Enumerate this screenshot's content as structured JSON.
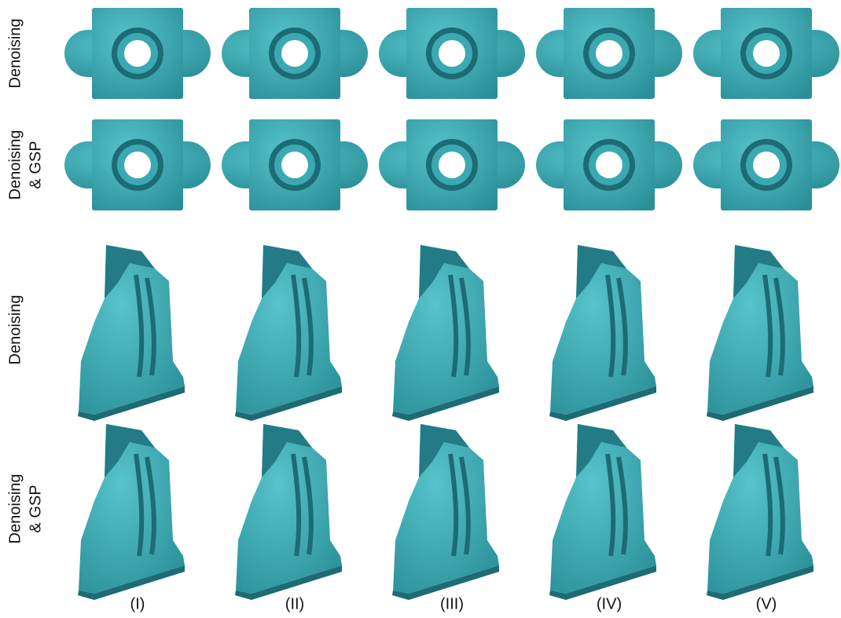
{
  "row_labels": [
    [
      "Denoising"
    ],
    [
      "Denoising",
      "& GSP"
    ],
    [
      "Denoising"
    ],
    [
      "Denoising",
      "& GSP"
    ]
  ],
  "column_labels": [
    "(I)",
    "(II)",
    "(III)",
    "(IV)",
    "(V)"
  ]
}
